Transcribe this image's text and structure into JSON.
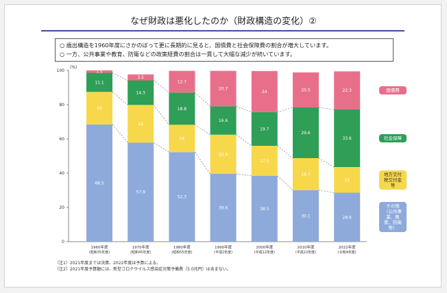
{
  "chart_data": {
    "type": "stacked_bar",
    "title": "なぜ財政は悪化したのか（財政構造の変化）②",
    "bullets": [
      "○ 歳出構造を1960年度にさかのぼって更に長期的に見ると、国債費と社会保障費の割合が増大しています。",
      "○ 一方、公共事業や教育、防衛などの政策経費の割合は一貫して大幅な減少が続いています。"
    ],
    "y_unit": "(%)",
    "categories": [
      "1960年度",
      "1970年度",
      "1980年度",
      "1990年度",
      "2000年度",
      "2010年度",
      "2022年度"
    ],
    "category_sublabels": [
      "(昭和35年度)",
      "(昭和45年度)",
      "(昭和55年度)",
      "(平成2年度)",
      "(平成12年度)",
      "(平成22年度)",
      "(令和4年度)"
    ],
    "series": [
      {
        "name": "その他（公共事業、教育、防衛 等）",
        "color": "#8eaadb",
        "values": [
          68.5,
          57.9,
          52.3,
          39.6,
          38.5,
          30.1,
          28.6
        ]
      },
      {
        "name": "地方交付税交付金等",
        "color": "#f7d84a",
        "values": [
          19.0,
          22.0,
          16.0,
          22.9,
          17.5,
          18.7,
          15.0
        ]
      },
      {
        "name": "社会保障",
        "color": "#2f9e57",
        "values": [
          11.1,
          14.3,
          18.8,
          16.6,
          19.7,
          29.6,
          33.6
        ]
      },
      {
        "name": "国債費",
        "color": "#e86f8a",
        "values": [
          1.5,
          3.5,
          12.7,
          20.7,
          24.0,
          20.5,
          22.3
        ]
      }
    ],
    "ylim": [
      0,
      100
    ],
    "yticks": [
      0,
      20,
      40,
      60,
      80,
      100
    ],
    "notes": [
      "（注1）2021年度までは決算、2022年度は予算による。",
      "（注2）2021年度予算額には、新型コロナウイルス感染症対策予備費（5.0兆円）は含まない。"
    ]
  }
}
